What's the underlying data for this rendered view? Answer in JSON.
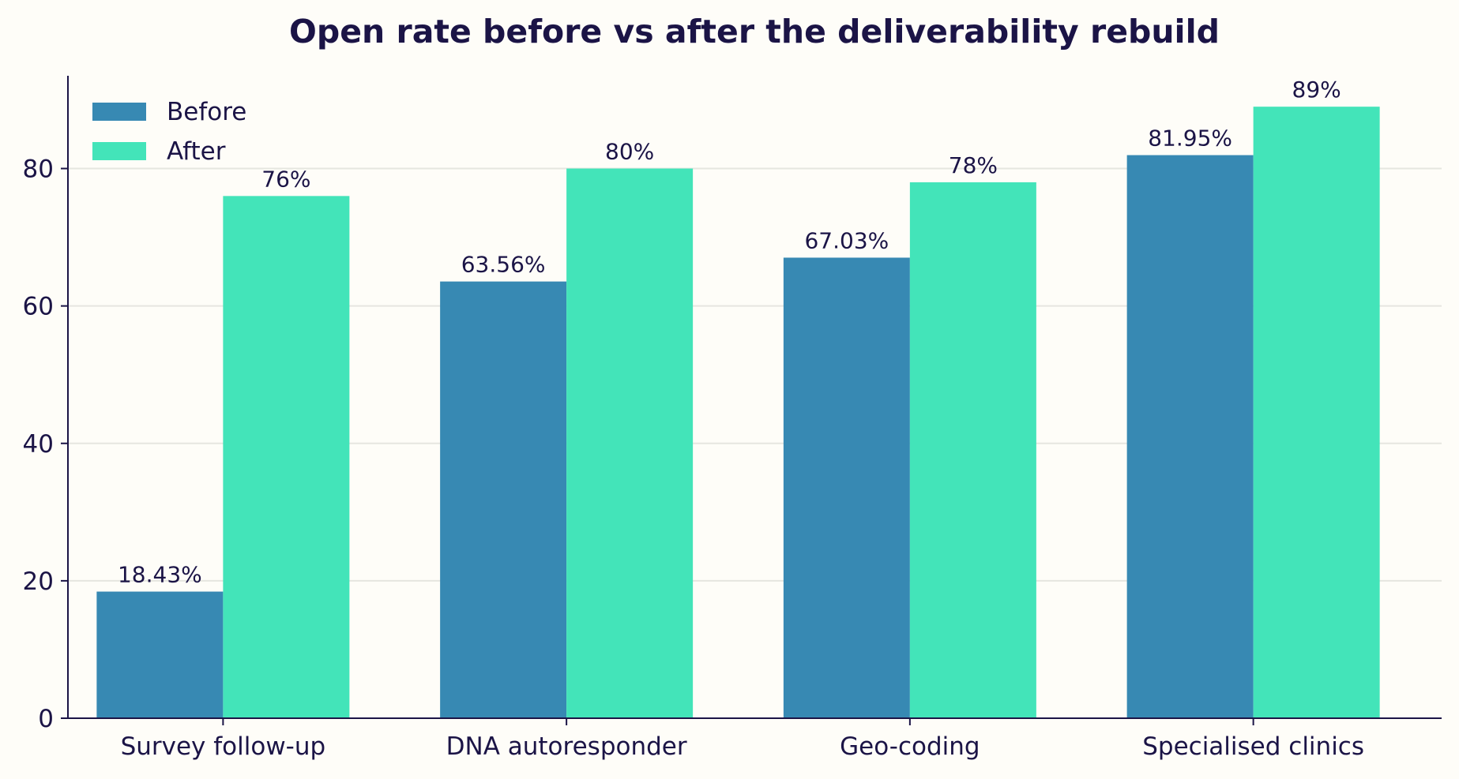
{
  "chart_data": {
    "type": "bar",
    "title": "Open rate before vs after the deliverability rebuild",
    "xlabel": "",
    "ylabel": "",
    "categories": [
      "Survey follow-up",
      "DNA autoresponder",
      "Geo-coding",
      "Specialised clinics"
    ],
    "series": [
      {
        "name": "Before",
        "color": "#3789b3",
        "values": [
          18.43,
          63.56,
          67.03,
          81.95
        ],
        "labels": [
          "18.43%",
          "63.56%",
          "67.03%",
          "81.95%"
        ]
      },
      {
        "name": "After",
        "color": "#43e4b9",
        "values": [
          76,
          80,
          78,
          89
        ],
        "labels": [
          "76%",
          "80%",
          "78%",
          "89%"
        ]
      }
    ],
    "ylim": [
      0,
      93.5
    ],
    "yticks": [
      0,
      20,
      40,
      60,
      80
    ],
    "grid": "horizontal",
    "legend_position": "top-left",
    "colors": {
      "background": "#fefdf8",
      "text": "#1b1446",
      "axis": "#1b1446",
      "grid": "#e6e6e0"
    }
  }
}
